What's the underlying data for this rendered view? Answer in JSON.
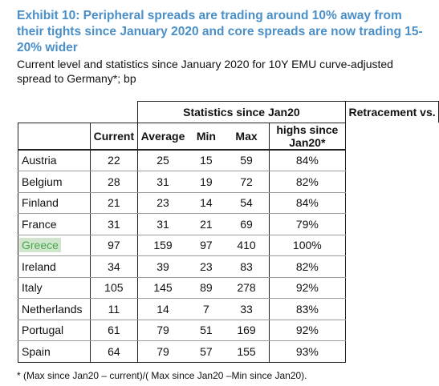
{
  "title": "Exhibit 10: Peripheral spreads are trading around 10% away from their tights since January 2020 and core spreads are now trading 15-20% wider",
  "subtitle": "Current level and statistics since January 2020 for 10Y EMU curve-adjusted spread to Germany*; bp",
  "table": {
    "group_headers": {
      "stats": "Statistics since Jan20",
      "retracement_line1": "Retracement vs.",
      "retracement_line2": "highs since Jan20*"
    },
    "columns": {
      "current": "Current",
      "average": "Average",
      "min": "Min",
      "max": "Max"
    },
    "rows": [
      {
        "country": "Austria",
        "current": "22",
        "average": "25",
        "min": "15",
        "max": "59",
        "retracement": "84%"
      },
      {
        "country": "Belgium",
        "current": "28",
        "average": "31",
        "min": "19",
        "max": "72",
        "retracement": "82%"
      },
      {
        "country": "Finland",
        "current": "21",
        "average": "23",
        "min": "14",
        "max": "54",
        "retracement": "84%"
      },
      {
        "country": "France",
        "current": "31",
        "average": "31",
        "min": "21",
        "max": "69",
        "retracement": "79%"
      },
      {
        "country": "Greece",
        "current": "97",
        "average": "159",
        "min": "97",
        "max": "410",
        "retracement": "100%",
        "highlighted": true
      },
      {
        "country": "Ireland",
        "current": "34",
        "average": "39",
        "min": "23",
        "max": "83",
        "retracement": "82%"
      },
      {
        "country": "Italy",
        "current": "105",
        "average": "145",
        "min": "89",
        "max": "278",
        "retracement": "92%"
      },
      {
        "country": "Netherlands",
        "current": "11",
        "average": "14",
        "min": "7",
        "max": "33",
        "retracement": "83%"
      },
      {
        "country": "Portugal",
        "current": "61",
        "average": "79",
        "min": "51",
        "max": "169",
        "retracement": "92%"
      },
      {
        "country": "Spain",
        "current": "64",
        "average": "79",
        "min": "57",
        "max": "155",
        "retracement": "93%"
      }
    ]
  },
  "footnote": "* (Max since Jan20 – current)/( Max since Jan20 –Min since Jan20).",
  "colors": {
    "title": "#4a8fc8",
    "highlight_bg": "#cfe6cc",
    "highlight_text": "#4ba551"
  }
}
